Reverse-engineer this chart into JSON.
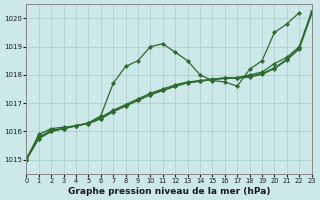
{
  "title": "Graphe pression niveau de la mer (hPa)",
  "bg_color": "#cce8e8",
  "grid_color": "#aacccc",
  "line_color": "#2d6a2d",
  "marker_color": "#2d6a2d",
  "xlim": [
    0,
    23
  ],
  "ylim": [
    1014.5,
    1020.5
  ],
  "yticks": [
    1015,
    1016,
    1017,
    1018,
    1019,
    1020
  ],
  "xticks": [
    0,
    1,
    2,
    3,
    4,
    5,
    6,
    7,
    8,
    9,
    10,
    11,
    12,
    13,
    14,
    15,
    16,
    17,
    18,
    19,
    20,
    21,
    22,
    23
  ],
  "series": [
    {
      "x": [
        0,
        1,
        2,
        3,
        4,
        5,
        6,
        7,
        8,
        9,
        10,
        11,
        12,
        13,
        14,
        15,
        16,
        17,
        18,
        19,
        20,
        21,
        22
      ],
      "y": [
        1015.0,
        1015.9,
        1016.1,
        1016.15,
        1016.2,
        1016.3,
        1016.55,
        1017.7,
        1018.3,
        1018.5,
        1019.0,
        1019.1,
        1018.8,
        1018.5,
        1018.0,
        1017.8,
        1017.75,
        1017.6,
        1018.2,
        1018.5,
        1019.5,
        1019.8,
        1020.2
      ]
    },
    {
      "x": [
        0,
        1,
        2,
        3,
        4,
        5,
        6,
        7,
        8,
        9,
        10,
        11,
        12,
        13,
        14,
        15,
        16,
        17,
        18,
        19,
        20,
        21,
        22,
        23
      ],
      "y": [
        1015.05,
        1015.8,
        1016.05,
        1016.1,
        1016.2,
        1016.3,
        1016.5,
        1016.75,
        1016.95,
        1017.15,
        1017.35,
        1017.5,
        1017.65,
        1017.75,
        1017.8,
        1017.85,
        1017.9,
        1017.9,
        1017.95,
        1018.05,
        1018.25,
        1018.55,
        1018.95,
        1020.2
      ]
    },
    {
      "x": [
        0,
        1,
        2,
        3,
        4,
        5,
        6,
        7,
        8,
        9,
        10,
        11,
        12,
        13,
        14,
        15,
        16,
        17,
        18,
        19,
        20,
        21,
        22,
        23
      ],
      "y": [
        1015.0,
        1015.75,
        1016.0,
        1016.1,
        1016.2,
        1016.28,
        1016.45,
        1016.7,
        1016.9,
        1017.1,
        1017.3,
        1017.45,
        1017.6,
        1017.72,
        1017.78,
        1017.83,
        1017.88,
        1017.88,
        1017.92,
        1018.02,
        1018.22,
        1018.52,
        1018.92,
        1020.15
      ]
    },
    {
      "x": [
        0,
        1,
        2,
        3,
        4,
        5,
        6,
        7,
        8,
        9,
        10,
        11,
        12,
        13,
        14,
        15,
        16,
        17,
        18,
        19,
        20,
        21,
        22,
        23
      ],
      "y": [
        1015.0,
        1015.75,
        1016.0,
        1016.1,
        1016.2,
        1016.28,
        1016.45,
        1016.7,
        1016.9,
        1017.1,
        1017.3,
        1017.45,
        1017.6,
        1017.72,
        1017.78,
        1017.83,
        1017.88,
        1017.9,
        1018.0,
        1018.1,
        1018.4,
        1018.62,
        1019.0,
        1020.25
      ]
    }
  ]
}
